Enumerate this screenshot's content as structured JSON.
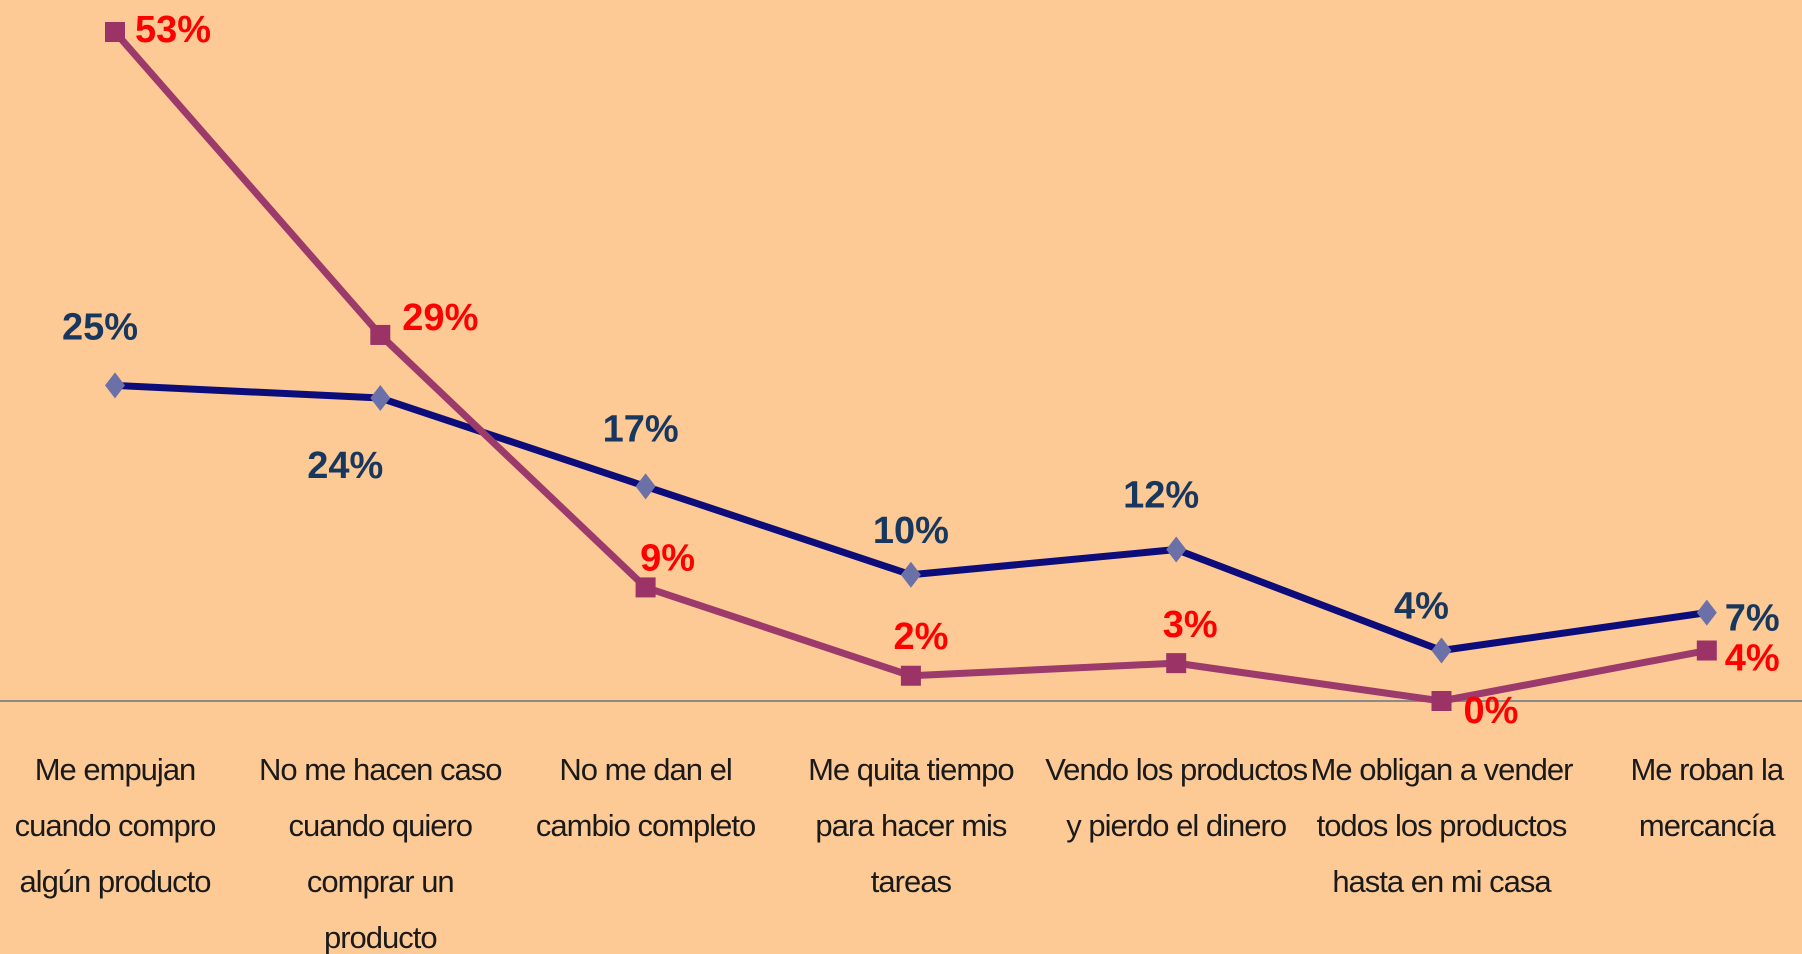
{
  "chart_data": {
    "type": "line",
    "categories": [
      "Me empujan cuando compro algún producto",
      "No me hacen caso cuando quiero comprar un producto",
      "No me dan el cambio completo",
      "Me quita tiempo para hacer mis tareas",
      "Vendo los productos y pierdo el dinero",
      "Me obligan a vender todos los productos hasta en mi casa",
      "Me roban la mercancía"
    ],
    "series": [
      {
        "color": "#0c0c7a",
        "marker_color": "#6b70a8",
        "label_color": "#17375e",
        "marker": "diamond",
        "values": [
          25,
          24,
          17,
          10,
          12,
          4,
          7
        ],
        "value_labels": [
          "25%",
          "24%",
          "17%",
          "10%",
          "12%",
          "4%",
          "7%"
        ]
      },
      {
        "color": "#9b3a6b",
        "marker_color": "#9b3366",
        "label_color": "#ff0000",
        "marker": "square",
        "values": [
          53,
          29,
          9,
          2,
          3,
          0,
          4
        ],
        "value_labels": [
          "53%",
          "29%",
          "9%",
          "2%",
          "3%",
          "0%",
          "4%"
        ]
      }
    ],
    "ylim": [
      0,
      53
    ]
  }
}
